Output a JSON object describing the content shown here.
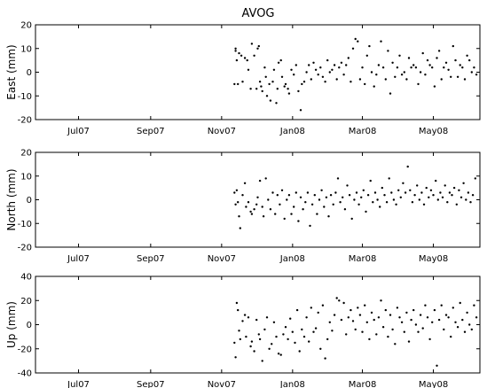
{
  "chart_data": [
    {
      "type": "scatter",
      "title": "AVOG",
      "ylabel": "East (mm)",
      "ylim": [
        -20,
        20
      ],
      "yticks": [
        -20,
        -10,
        0,
        10,
        20
      ],
      "xlim": [
        "2007-05-25",
        "2008-06-10"
      ],
      "xticks": [
        {
          "date": "2007-07-01",
          "label": "Jul07"
        },
        {
          "date": "2007-09-01",
          "label": "Sep07"
        },
        {
          "date": "2007-11-01",
          "label": "Nov07"
        },
        {
          "date": "2008-01-01",
          "label": "Jan08"
        },
        {
          "date": "2008-03-01",
          "label": "Mar08"
        },
        {
          "date": "2008-05-01",
          "label": "May08"
        }
      ],
      "x": [
        "2007-11-12",
        "2007-11-13",
        "2007-11-13",
        "2007-11-14",
        "2007-11-15",
        "2007-11-16",
        "2007-11-18",
        "2007-11-19",
        "2007-11-21",
        "2007-11-23",
        "2007-11-24",
        "2007-11-26",
        "2007-11-27",
        "2007-11-29",
        "2007-12-01",
        "2007-12-02",
        "2007-12-03",
        "2007-12-04",
        "2007-12-05",
        "2007-12-06",
        "2007-12-08",
        "2007-12-09",
        "2007-12-10",
        "2007-12-12",
        "2007-12-13",
        "2007-12-15",
        "2007-12-16",
        "2007-12-18",
        "2007-12-19",
        "2007-12-20",
        "2007-12-22",
        "2007-12-23",
        "2007-12-25",
        "2007-12-26",
        "2007-12-28",
        "2007-12-29",
        "2007-12-31",
        "2008-01-02",
        "2008-01-04",
        "2008-01-06",
        "2008-01-08",
        "2008-01-09",
        "2008-01-11",
        "2008-01-13",
        "2008-01-15",
        "2008-01-17",
        "2008-01-19",
        "2008-01-21",
        "2008-01-23",
        "2008-01-25",
        "2008-01-27",
        "2008-01-29",
        "2008-01-31",
        "2008-02-02",
        "2008-02-04",
        "2008-02-06",
        "2008-02-08",
        "2008-02-10",
        "2008-02-12",
        "2008-02-14",
        "2008-02-16",
        "2008-02-18",
        "2008-02-20",
        "2008-02-22",
        "2008-02-24",
        "2008-02-26",
        "2008-02-28",
        "2008-03-01",
        "2008-03-03",
        "2008-03-05",
        "2008-03-07",
        "2008-03-09",
        "2008-03-11",
        "2008-03-13",
        "2008-03-15",
        "2008-03-17",
        "2008-03-19",
        "2008-03-21",
        "2008-03-23",
        "2008-03-25",
        "2008-03-27",
        "2008-03-29",
        "2008-03-31",
        "2008-04-02",
        "2008-04-04",
        "2008-04-06",
        "2008-04-08",
        "2008-04-10",
        "2008-04-12",
        "2008-04-14",
        "2008-04-16",
        "2008-04-18",
        "2008-04-20",
        "2008-04-22",
        "2008-04-24",
        "2008-04-26",
        "2008-04-28",
        "2008-04-30",
        "2008-05-02",
        "2008-05-04",
        "2008-05-06",
        "2008-05-08",
        "2008-05-10",
        "2008-05-12",
        "2008-05-14",
        "2008-05-16",
        "2008-05-18",
        "2008-05-20",
        "2008-05-22",
        "2008-05-24",
        "2008-05-26",
        "2008-05-28",
        "2008-05-30",
        "2008-06-01",
        "2008-06-03",
        "2008-06-05",
        "2008-06-07"
      ],
      "y": [
        -5,
        10,
        9,
        5,
        -5,
        8,
        7,
        -4,
        6,
        5,
        1,
        -7,
        12,
        7,
        -7,
        10,
        11,
        -4,
        -6,
        -8,
        2,
        -2,
        -10,
        -5,
        -12,
        -4,
        1,
        -13,
        -7,
        4,
        5,
        -2,
        -6,
        -5,
        -7,
        -9,
        1,
        -1,
        3,
        -8,
        -16,
        -5,
        -4,
        0,
        3,
        -3,
        4,
        1,
        -1,
        2,
        -2,
        -4,
        5,
        0,
        1,
        3,
        -3,
        2,
        4,
        -1,
        3,
        6,
        -4,
        10,
        14,
        13,
        -3,
        2,
        -5,
        7,
        11,
        0,
        -6,
        -1,
        3,
        13,
        2,
        -3,
        9,
        -9,
        4,
        -2,
        2,
        7,
        -1,
        0,
        -3,
        6,
        2,
        3,
        2,
        -5,
        0,
        8,
        -1,
        5,
        3,
        2,
        -6,
        6,
        9,
        -3,
        2,
        4,
        1,
        -2,
        11,
        5,
        -2,
        3,
        2,
        -3,
        7,
        5,
        0,
        2,
        -1
      ]
    },
    {
      "type": "scatter",
      "ylabel": "North (mm)",
      "ylim": [
        -20,
        20
      ],
      "yticks": [
        -20,
        -10,
        0,
        10,
        20
      ],
      "xlim": [
        "2007-05-25",
        "2008-06-10"
      ],
      "xticks": [
        {
          "date": "2007-07-01",
          "label": "Jul07"
        },
        {
          "date": "2007-09-01",
          "label": "Sep07"
        },
        {
          "date": "2007-11-01",
          "label": "Nov07"
        },
        {
          "date": "2008-01-01",
          "label": "Jan08"
        },
        {
          "date": "2008-03-01",
          "label": "Mar08"
        },
        {
          "date": "2008-05-01",
          "label": "May08"
        }
      ],
      "x": [
        "2007-11-12",
        "2007-11-13",
        "2007-11-14",
        "2007-11-15",
        "2007-11-16",
        "2007-11-17",
        "2007-11-19",
        "2007-11-21",
        "2007-11-22",
        "2007-11-24",
        "2007-11-26",
        "2007-11-27",
        "2007-11-29",
        "2007-12-01",
        "2007-12-02",
        "2007-12-04",
        "2007-12-06",
        "2007-12-07",
        "2007-12-09",
        "2007-12-11",
        "2007-12-13",
        "2007-12-15",
        "2007-12-17",
        "2007-12-19",
        "2007-12-21",
        "2007-12-23",
        "2007-12-25",
        "2007-12-27",
        "2007-12-29",
        "2007-12-31",
        "2008-01-02",
        "2008-01-04",
        "2008-01-06",
        "2008-01-08",
        "2008-01-10",
        "2008-01-12",
        "2008-01-14",
        "2008-01-16",
        "2008-01-18",
        "2008-01-20",
        "2008-01-22",
        "2008-01-24",
        "2008-01-26",
        "2008-01-28",
        "2008-01-30",
        "2008-02-01",
        "2008-02-03",
        "2008-02-05",
        "2008-02-07",
        "2008-02-09",
        "2008-02-11",
        "2008-02-13",
        "2008-02-15",
        "2008-02-17",
        "2008-02-19",
        "2008-02-21",
        "2008-02-23",
        "2008-02-25",
        "2008-02-27",
        "2008-02-29",
        "2008-03-02",
        "2008-03-04",
        "2008-03-06",
        "2008-03-08",
        "2008-03-10",
        "2008-03-12",
        "2008-03-14",
        "2008-03-16",
        "2008-03-18",
        "2008-03-20",
        "2008-03-22",
        "2008-03-24",
        "2008-03-26",
        "2008-03-28",
        "2008-03-30",
        "2008-04-01",
        "2008-04-03",
        "2008-04-05",
        "2008-04-07",
        "2008-04-09",
        "2008-04-11",
        "2008-04-13",
        "2008-04-15",
        "2008-04-17",
        "2008-04-19",
        "2008-04-21",
        "2008-04-23",
        "2008-04-25",
        "2008-04-27",
        "2008-04-29",
        "2008-05-01",
        "2008-05-03",
        "2008-05-05",
        "2008-05-07",
        "2008-05-09",
        "2008-05-11",
        "2008-05-13",
        "2008-05-15",
        "2008-05-17",
        "2008-05-19",
        "2008-05-21",
        "2008-05-23",
        "2008-05-25",
        "2008-05-27",
        "2008-05-29",
        "2008-05-31",
        "2008-06-02",
        "2008-06-04",
        "2008-06-06"
      ],
      "y": [
        3,
        -2,
        4,
        -1,
        -7,
        -12,
        2,
        7,
        -3,
        -1,
        -5,
        -6,
        -4,
        -2,
        1,
        8,
        -3,
        -7,
        9,
        0,
        -4,
        3,
        -6,
        2,
        -2,
        4,
        -8,
        0,
        2,
        -6,
        -3,
        3,
        -9,
        1,
        -4,
        -1,
        3,
        -11,
        -2,
        2,
        -6,
        0,
        4,
        -3,
        1,
        -7,
        2,
        -2,
        3,
        9,
        -1,
        1,
        -4,
        6,
        2,
        -8,
        0,
        3,
        -2,
        1,
        4,
        -5,
        2,
        8,
        -1,
        3,
        0,
        -3,
        5,
        2,
        -1,
        9,
        3,
        0,
        -2,
        4,
        1,
        7,
        3,
        14,
        4,
        -1,
        2,
        6,
        0,
        3,
        -2,
        5,
        1,
        4,
        2,
        8,
        0,
        3,
        1,
        6,
        -1,
        3,
        2,
        5,
        -2,
        4,
        1,
        7,
        0,
        3,
        -1,
        2,
        9
      ]
    },
    {
      "type": "scatter",
      "ylabel": "Up (mm)",
      "ylim": [
        -40,
        40
      ],
      "yticks": [
        -40,
        -20,
        0,
        20,
        40
      ],
      "xlim": [
        "2007-05-25",
        "2008-06-10"
      ],
      "xticks": [
        {
          "date": "2007-07-01",
          "label": "Jul07"
        },
        {
          "date": "2007-09-01",
          "label": "Sep07"
        },
        {
          "date": "2007-11-01",
          "label": "Nov07"
        },
        {
          "date": "2008-01-01",
          "label": "Jan08"
        },
        {
          "date": "2008-03-01",
          "label": "Mar08"
        },
        {
          "date": "2008-05-01",
          "label": "May08"
        }
      ],
      "x": [
        "2007-11-12",
        "2007-11-13",
        "2007-11-14",
        "2007-11-15",
        "2007-11-16",
        "2007-11-17",
        "2007-11-19",
        "2007-11-21",
        "2007-11-22",
        "2007-11-24",
        "2007-11-26",
        "2007-11-27",
        "2007-11-29",
        "2007-12-01",
        "2007-12-03",
        "2007-12-04",
        "2007-12-06",
        "2007-12-08",
        "2007-12-10",
        "2007-12-12",
        "2007-12-14",
        "2007-12-16",
        "2007-12-18",
        "2007-12-20",
        "2007-12-22",
        "2007-12-24",
        "2007-12-26",
        "2007-12-28",
        "2007-12-30",
        "2008-01-01",
        "2008-01-03",
        "2008-01-05",
        "2008-01-07",
        "2008-01-09",
        "2008-01-11",
        "2008-01-13",
        "2008-01-15",
        "2008-01-17",
        "2008-01-19",
        "2008-01-21",
        "2008-01-23",
        "2008-01-25",
        "2008-01-27",
        "2008-01-29",
        "2008-01-31",
        "2008-02-02",
        "2008-02-04",
        "2008-02-06",
        "2008-02-08",
        "2008-02-10",
        "2008-02-12",
        "2008-02-14",
        "2008-02-16",
        "2008-02-18",
        "2008-02-20",
        "2008-02-22",
        "2008-02-24",
        "2008-02-26",
        "2008-02-28",
        "2008-03-01",
        "2008-03-03",
        "2008-03-05",
        "2008-03-07",
        "2008-03-09",
        "2008-03-11",
        "2008-03-13",
        "2008-03-15",
        "2008-03-17",
        "2008-03-19",
        "2008-03-21",
        "2008-03-23",
        "2008-03-25",
        "2008-03-27",
        "2008-03-29",
        "2008-03-31",
        "2008-04-02",
        "2008-04-04",
        "2008-04-06",
        "2008-04-08",
        "2008-04-10",
        "2008-04-12",
        "2008-04-14",
        "2008-04-16",
        "2008-04-18",
        "2008-04-20",
        "2008-04-22",
        "2008-04-24",
        "2008-04-26",
        "2008-04-28",
        "2008-04-30",
        "2008-05-02",
        "2008-05-04",
        "2008-05-06",
        "2008-05-08",
        "2008-05-10",
        "2008-05-12",
        "2008-05-14",
        "2008-05-16",
        "2008-05-18",
        "2008-05-20",
        "2008-05-22",
        "2008-05-24",
        "2008-05-26",
        "2008-05-28",
        "2008-05-30",
        "2008-06-01",
        "2008-06-03",
        "2008-06-05",
        "2008-06-07"
      ],
      "y": [
        -15,
        -27,
        18,
        12,
        -5,
        -12,
        3,
        8,
        -10,
        6,
        -18,
        -14,
        -22,
        4,
        -8,
        -12,
        -30,
        -4,
        6,
        -20,
        -16,
        2,
        -10,
        -24,
        -25,
        -8,
        -2,
        -12,
        5,
        -6,
        -15,
        12,
        -22,
        -4,
        -10,
        6,
        -14,
        14,
        -6,
        -3,
        10,
        -20,
        16,
        -28,
        -12,
        2,
        -5,
        8,
        22,
        20,
        4,
        18,
        -8,
        6,
        12,
        3,
        -4,
        14,
        8,
        -6,
        16,
        2,
        -12,
        10,
        4,
        -8,
        6,
        20,
        -2,
        12,
        -10,
        8,
        -4,
        -16,
        14,
        6,
        2,
        -6,
        10,
        -14,
        4,
        12,
        0,
        -6,
        8,
        -3,
        16,
        6,
        -12,
        2,
        12,
        -34,
        4,
        16,
        -4,
        8,
        6,
        -10,
        14,
        2,
        -2,
        18,
        4,
        -6,
        10,
        0,
        -4,
        16,
        6
      ]
    }
  ]
}
